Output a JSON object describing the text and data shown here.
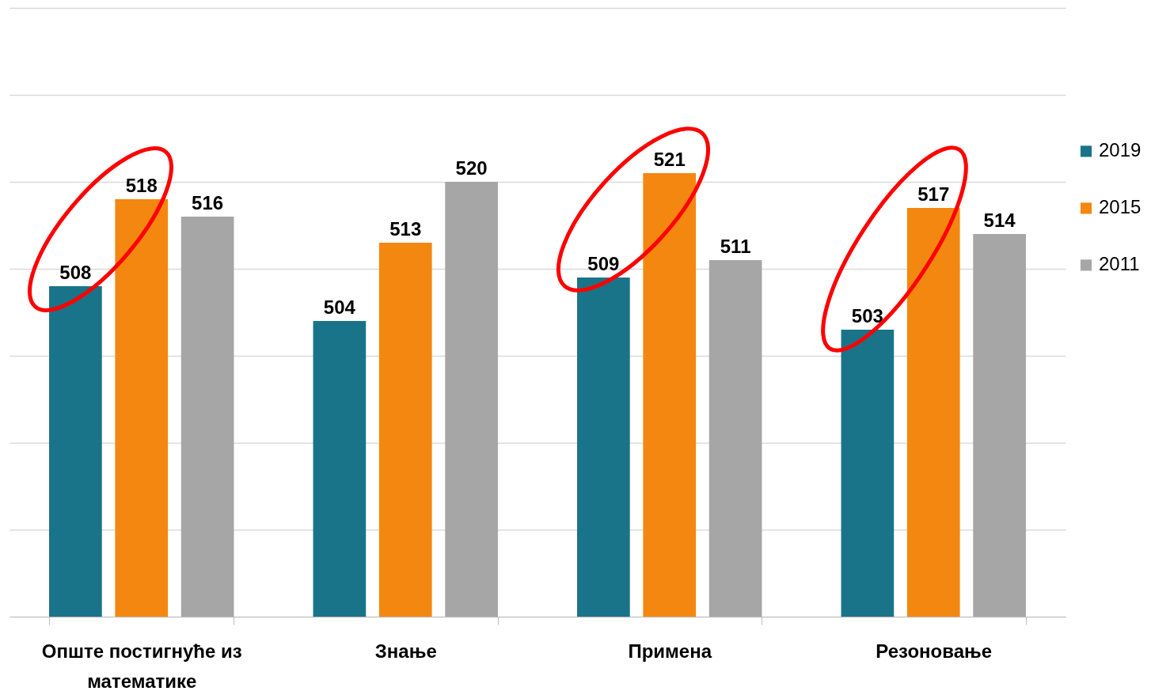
{
  "chart_data": {
    "type": "bar",
    "categories": [
      "Опште постигнуће из математике",
      "Знање",
      "Примена",
      "Резоновање"
    ],
    "series": [
      {
        "name": "2019",
        "color": "#1a7489",
        "values": [
          508,
          504,
          509,
          503
        ]
      },
      {
        "name": "2015",
        "color": "#f4870f",
        "values": [
          518,
          513,
          521,
          517
        ]
      },
      {
        "name": "2011",
        "color": "#a6a6a6",
        "values": [
          516,
          520,
          511,
          514
        ]
      }
    ],
    "ylim": [
      470,
      540
    ],
    "yticks": [
      {
        "value": 470,
        "label": null
      },
      {
        "value": 480,
        "label": null
      },
      {
        "value": 490,
        "label": null
      },
      {
        "value": 500,
        "label": null
      },
      {
        "value": 510,
        "label": null
      },
      {
        "value": 520,
        "label": null
      },
      {
        "value": 530,
        "label": null
      },
      {
        "value": 540,
        "label": null
      }
    ],
    "tick_labels": "x",
    "grid": "y",
    "legend": "right",
    "data_labels": true
  }
}
